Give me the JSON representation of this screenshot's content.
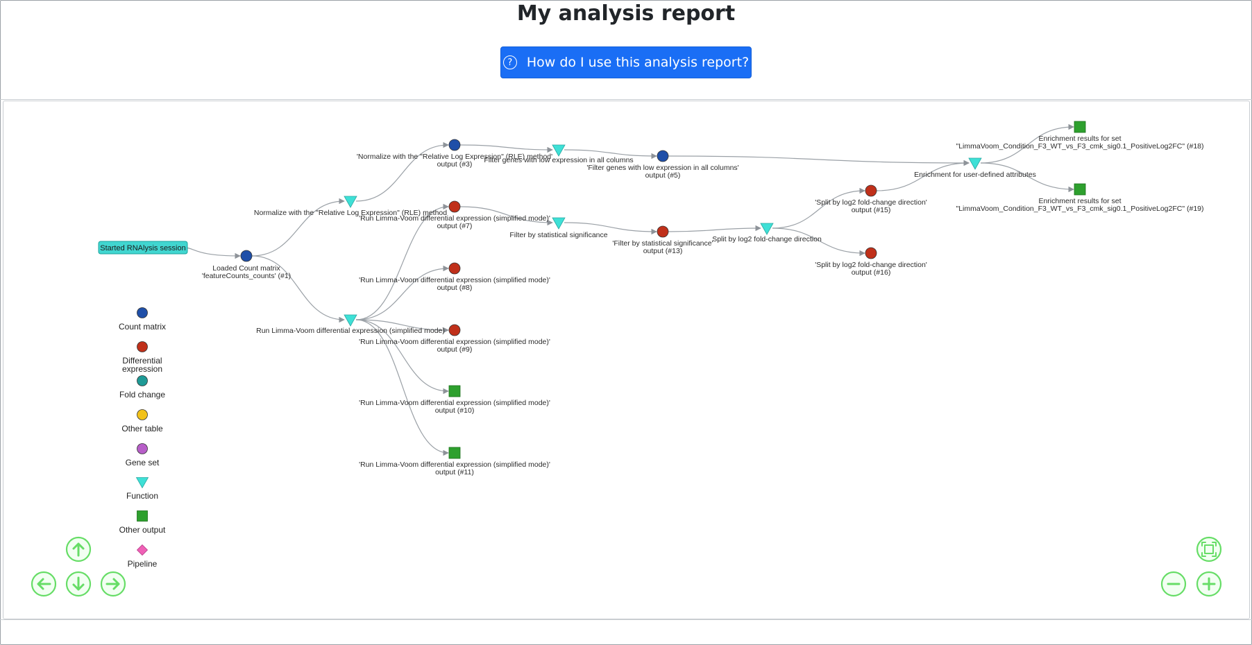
{
  "page": {
    "title": "My analysis report"
  },
  "help_button": {
    "label": "How do I use this analysis report?",
    "icon": "question-circle-icon"
  },
  "colors": {
    "count_matrix": "#1f4fa8",
    "differential_expression": "#c0301a",
    "fold_change": "#1e9a96",
    "other_table": "#f2c21a",
    "gene_set": "#b75ec8",
    "function": "#3ee0d6",
    "other_output": "#2ea02e",
    "pipeline": "#ef60b6",
    "nav_green": "#66dd66",
    "start_node": "#41d6d0",
    "edge": "#9aa0a6",
    "button_blue": "#1a6ef5"
  },
  "graph": {
    "start_node": "Started RNAlysis session",
    "nodes": [
      {
        "id": "n1",
        "type": "count_matrix",
        "label": [
          "Loaded Count matrix",
          "'featureCounts_counts' (#1)"
        ]
      },
      {
        "id": "f_rle",
        "type": "function",
        "label": [
          "Normalize with the \"Relative Log Expression\" (RLE) method"
        ]
      },
      {
        "id": "n3",
        "type": "count_matrix",
        "label": [
          "'Normalize with the \"Relative Log Expression\" (RLE) method'",
          "output (#3)"
        ]
      },
      {
        "id": "f_filter_low",
        "type": "function",
        "label": [
          "Filter genes with low expression in all columns"
        ]
      },
      {
        "id": "n5",
        "type": "count_matrix",
        "label": [
          "'Filter genes with low expression in all columns'",
          "output (#5)"
        ]
      },
      {
        "id": "f_enrich",
        "type": "function",
        "label": [
          "Enrichment for user-defined attributes"
        ]
      },
      {
        "id": "n18",
        "type": "other_output",
        "label": [
          "Enrichment results for set",
          "\"LimmaVoom_Condition_F3_WT_vs_F3_cmk_sig0.1_PositiveLog2FC\" (#18)"
        ]
      },
      {
        "id": "n19",
        "type": "other_output",
        "label": [
          "Enrichment results for set",
          "\"LimmaVoom_Condition_F3_WT_vs_F3_cmk_sig0.1_PositiveLog2FC\" (#19)"
        ]
      },
      {
        "id": "f_limma",
        "type": "function",
        "label": [
          "Run Limma-Voom differential expression (simplified mode)"
        ]
      },
      {
        "id": "n7",
        "type": "differential_expression",
        "label": [
          "'Run Limma-Voom differential expression (simplified mode)'",
          "output (#7)"
        ]
      },
      {
        "id": "f_filter_sig",
        "type": "function",
        "label": [
          "Filter by statistical significance"
        ]
      },
      {
        "id": "n13",
        "type": "differential_expression",
        "label": [
          "'Filter by statistical significance'",
          "output (#13)"
        ]
      },
      {
        "id": "f_split",
        "type": "function",
        "label": [
          "Split by log2 fold-change direction"
        ]
      },
      {
        "id": "n15",
        "type": "differential_expression",
        "label": [
          "'Split by log2 fold-change direction'",
          "output (#15)"
        ]
      },
      {
        "id": "n16",
        "type": "differential_expression",
        "label": [
          "'Split by log2 fold-change direction'",
          "output (#16)"
        ]
      },
      {
        "id": "n8",
        "type": "differential_expression",
        "label": [
          "'Run Limma-Voom differential expression (simplified mode)'",
          "output (#8)"
        ]
      },
      {
        "id": "n9",
        "type": "differential_expression",
        "label": [
          "'Run Limma-Voom differential expression (simplified mode)'",
          "output (#9)"
        ]
      },
      {
        "id": "n10",
        "type": "other_output",
        "label": [
          "'Run Limma-Voom differential expression (simplified mode)'",
          "output (#10)"
        ]
      },
      {
        "id": "n11",
        "type": "other_output",
        "label": [
          "'Run Limma-Voom differential expression (simplified mode)'",
          "output (#11)"
        ]
      }
    ],
    "edges": [
      [
        "start",
        "n1"
      ],
      [
        "n1",
        "f_rle"
      ],
      [
        "f_rle",
        "n3"
      ],
      [
        "n3",
        "f_filter_low"
      ],
      [
        "f_filter_low",
        "n5"
      ],
      [
        "n5",
        "f_enrich"
      ],
      [
        "f_enrich",
        "n18"
      ],
      [
        "f_enrich",
        "n19"
      ],
      [
        "n1",
        "f_limma"
      ],
      [
        "f_limma",
        "n7"
      ],
      [
        "f_limma",
        "n8"
      ],
      [
        "f_limma",
        "n9"
      ],
      [
        "f_limma",
        "n10"
      ],
      [
        "f_limma",
        "n11"
      ],
      [
        "n7",
        "f_filter_sig"
      ],
      [
        "f_filter_sig",
        "n13"
      ],
      [
        "n13",
        "f_split"
      ],
      [
        "f_split",
        "n15"
      ],
      [
        "f_split",
        "n16"
      ],
      [
        "n15",
        "f_enrich"
      ]
    ]
  },
  "legend": [
    {
      "key": "count_matrix",
      "shape": "circle",
      "label": [
        "Count matrix"
      ]
    },
    {
      "key": "differential_expression",
      "shape": "circle",
      "label": [
        "Differential",
        "expression"
      ]
    },
    {
      "key": "fold_change",
      "shape": "circle",
      "label": [
        "Fold change"
      ]
    },
    {
      "key": "other_table",
      "shape": "circle",
      "label": [
        "Other table"
      ]
    },
    {
      "key": "gene_set",
      "shape": "circle",
      "label": [
        "Gene set"
      ]
    },
    {
      "key": "function",
      "shape": "triangle",
      "label": [
        "Function"
      ]
    },
    {
      "key": "other_output",
      "shape": "square",
      "label": [
        "Other output"
      ]
    },
    {
      "key": "pipeline",
      "shape": "diamond",
      "label": [
        "Pipeline"
      ]
    }
  ],
  "nav_controls": [
    {
      "name": "pan-up-button",
      "icon": "arrow-up-icon"
    },
    {
      "name": "pan-left-button",
      "icon": "arrow-left-icon"
    },
    {
      "name": "pan-down-button",
      "icon": "arrow-down-icon"
    },
    {
      "name": "pan-right-button",
      "icon": "arrow-right-icon"
    },
    {
      "name": "fit-to-screen-button",
      "icon": "fit-screen-icon"
    },
    {
      "name": "zoom-out-button",
      "icon": "minus-icon"
    },
    {
      "name": "zoom-in-button",
      "icon": "plus-icon"
    }
  ]
}
